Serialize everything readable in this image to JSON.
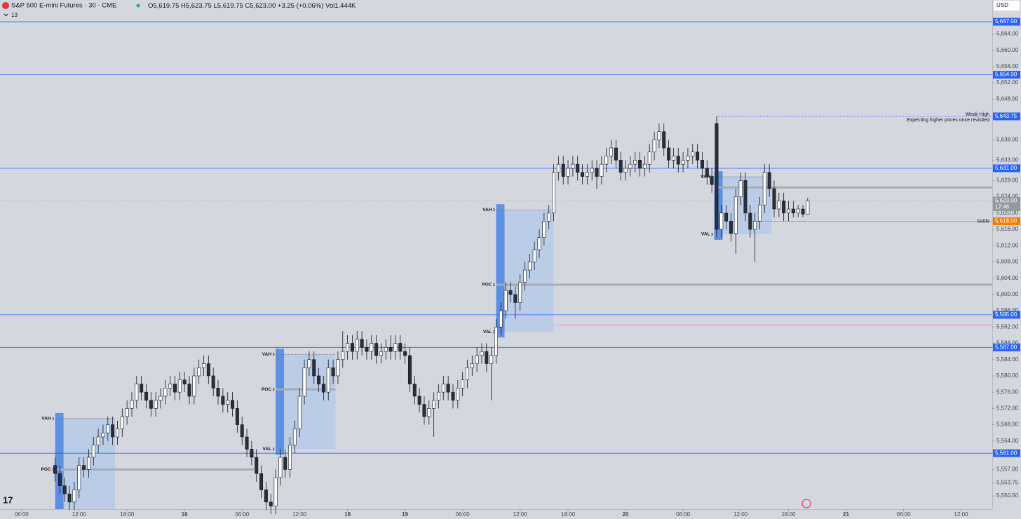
{
  "chart_data": {
    "type": "candlestick",
    "title": "S&P 500 E-mini Futures · 30 · CME",
    "legend_values": [
      "O5,619.75",
      "H5,623.75",
      "L5,619.75",
      "C5,623.00",
      "+3.25 (+0.06%)",
      "Vol",
      "1.444K"
    ],
    "indicator_label": "13",
    "currency": "USD",
    "up_color": "#ffffff",
    "down_color": "#2a2e39",
    "ylim": [
      5547.25,
      5672.35
    ],
    "xlim": [
      -4.5,
      202.5
    ],
    "yticks": [
      {
        "value": 5664,
        "label": "5,664.00"
      },
      {
        "value": 5660,
        "label": "5,660.00"
      },
      {
        "value": 5656,
        "label": "5,656.00"
      },
      {
        "value": 5652,
        "label": "5,652.00"
      },
      {
        "value": 5648,
        "label": "5,648.00"
      },
      {
        "value": 5638,
        "label": "5,638.00"
      },
      {
        "value": 5633,
        "label": "5,633.00"
      },
      {
        "value": 5628,
        "label": "5,628.00"
      },
      {
        "value": 5624,
        "label": "5,624.00"
      },
      {
        "value": 5620,
        "label": "5,620.00"
      },
      {
        "value": 5616,
        "label": "5,616.00"
      },
      {
        "value": 5612,
        "label": "5,612.00"
      },
      {
        "value": 5608,
        "label": "5,608.00"
      },
      {
        "value": 5604,
        "label": "5,604.00"
      },
      {
        "value": 5600,
        "label": "5,600.00"
      },
      {
        "value": 5596,
        "label": "5,596.00"
      },
      {
        "value": 5592,
        "label": "5,592.00"
      },
      {
        "value": 5588,
        "label": "5,588.00"
      },
      {
        "value": 5584,
        "label": "5,584.00"
      },
      {
        "value": 5580,
        "label": "5,580.00"
      },
      {
        "value": 5576,
        "label": "5,576.00"
      },
      {
        "value": 5572,
        "label": "5,572.00"
      },
      {
        "value": 5568,
        "label": "5,568.00"
      },
      {
        "value": 5564,
        "label": "5,564.00"
      },
      {
        "value": 5557,
        "label": "5,557.00"
      },
      {
        "value": 5553.75,
        "label": "5,553.75"
      },
      {
        "value": 5550.5,
        "label": "5,550.50"
      }
    ],
    "xticks": [
      {
        "value": 0,
        "label": "06:00"
      },
      {
        "value": 12,
        "label": "12:00"
      },
      {
        "value": 22,
        "label": "18:00"
      },
      {
        "value": 34,
        "label": "16"
      },
      {
        "value": 46,
        "label": "06:00"
      },
      {
        "value": 58,
        "label": "12:00"
      },
      {
        "value": 68,
        "label": "18"
      },
      {
        "value": 80,
        "label": "19"
      },
      {
        "value": 92,
        "label": "06:00"
      },
      {
        "value": 104,
        "label": "12:00"
      },
      {
        "value": 114,
        "label": "18:00"
      },
      {
        "value": 126,
        "label": "20"
      },
      {
        "value": 138,
        "label": "06:00"
      },
      {
        "value": 150,
        "label": "12:00"
      },
      {
        "value": 160,
        "label": "18:00"
      },
      {
        "value": 172,
        "label": "21"
      },
      {
        "value": 184,
        "label": "06:00"
      },
      {
        "value": 196,
        "label": "12:00"
      }
    ],
    "levels": [
      {
        "value": 5667,
        "label": "5,667.00",
        "color": "#2962ff"
      },
      {
        "value": 5654,
        "label": "5,654.00",
        "color": "#2962ff"
      },
      {
        "value": 5631,
        "label": "5,631.00",
        "color": "#2962ff"
      },
      {
        "value": 5595,
        "label": "5,595.00",
        "color": "#2962ff"
      },
      {
        "value": 5587,
        "label": "5,587.00",
        "color": "#2962ff"
      },
      {
        "value": 5561,
        "label": "5,561.00",
        "color": "#2962ff"
      }
    ],
    "weak_high": {
      "value": 5643.75,
      "label": "5,643.75",
      "from": 145,
      "title": "Weak High",
      "note": "Expecting higher prices once revisited",
      "color": "#2962ff"
    },
    "settle": {
      "value": 5618,
      "label": "5,618.00",
      "from": 152,
      "text": "Settle",
      "color": "#f57c00"
    },
    "last_price": {
      "value": 5623,
      "label": "5,623.00",
      "countdown": "17:46",
      "color": "#9598a1"
    },
    "zones": [
      {
        "value": 5592.5,
        "from": 111,
        "color": "#e1bee7"
      }
    ],
    "profiles": [
      {
        "start": 7,
        "end": 19.5,
        "vah": 5569.5,
        "poc": 5557,
        "poc_to": 48.5,
        "labels": [
          "VAH",
          "POC"
        ]
      },
      {
        "start": 53,
        "end": 65.5,
        "vah": 5585.3,
        "poc": 5576.7,
        "val": 5562,
        "poc_to": 65.5,
        "labels": [
          "VAH",
          "POC",
          "VAL"
        ]
      },
      {
        "start": 99,
        "end": 111,
        "vah": 5620.8,
        "poc": 5602.4,
        "val": 5590.8,
        "poc_to": 202.5,
        "labels": [
          "VAH",
          "POC",
          "VAL"
        ]
      },
      {
        "start": 144.5,
        "end": 156.5,
        "vah": 5628.9,
        "poc": 5626.3,
        "val": 5614.8,
        "poc_to": 202.5,
        "labels": [
          "VAH",
          "VAL"
        ]
      }
    ],
    "x": [
      7,
      8,
      9,
      10,
      11,
      12,
      13,
      14,
      15,
      16,
      17,
      18,
      19,
      20,
      21,
      22,
      23,
      24,
      25,
      26,
      27,
      28,
      29,
      30,
      31,
      32,
      33,
      34,
      35,
      36,
      37,
      38,
      39,
      40,
      41,
      42,
      43,
      44,
      45,
      46,
      47,
      48,
      49,
      50,
      51,
      52,
      53,
      54,
      55,
      56,
      57,
      58,
      59,
      60,
      61,
      62,
      63,
      64,
      65,
      66,
      67,
      68,
      69,
      70,
      71,
      72,
      73,
      74,
      75,
      76,
      77,
      78,
      79,
      80,
      81,
      82,
      83,
      84,
      85,
      86,
      87,
      88,
      89,
      90,
      91,
      92,
      93,
      94,
      95,
      96,
      97,
      98,
      99,
      100,
      101,
      102,
      103,
      104,
      105,
      106,
      107,
      108,
      109,
      110,
      111,
      112,
      113,
      114,
      115,
      116,
      117,
      118,
      119,
      120,
      121,
      122,
      123,
      124,
      125,
      126,
      127,
      128,
      129,
      130,
      131,
      132,
      133,
      134,
      135,
      136,
      137,
      138,
      139,
      140,
      141,
      142,
      143,
      144,
      145,
      146,
      147,
      148,
      149,
      150,
      151,
      152,
      153,
      154,
      155,
      156,
      157,
      158,
      159,
      160,
      161,
      162,
      163,
      164
    ],
    "open": [
      5558,
      5556,
      5553,
      5551,
      5549,
      5552,
      5558,
      5557,
      5560,
      5563,
      5565,
      5566,
      5568,
      5565,
      5567,
      5570,
      5572,
      5574,
      5578,
      5576,
      5574,
      5572,
      5574,
      5575,
      5577,
      5578,
      5576,
      5579,
      5578,
      5575,
      5580,
      5582,
      5583,
      5580,
      5577,
      5575,
      5573,
      5574,
      5572,
      5568,
      5565,
      5562,
      5560,
      5556,
      5552,
      5549,
      5548,
      5555,
      5560,
      5557,
      5563,
      5567,
      5575,
      5582,
      5584,
      5580,
      5578,
      5576,
      5582,
      5580,
      5584,
      5586,
      5588,
      5586,
      5589,
      5587,
      5586,
      5588,
      5585,
      5586,
      5587,
      5586,
      5588,
      5586,
      5585,
      5578,
      5575,
      5573,
      5570,
      5572,
      5574,
      5576,
      5578,
      5576,
      5574,
      5577,
      5579,
      5582,
      5583,
      5585,
      5586,
      5583,
      5585,
      5592,
      5596,
      5601,
      5600,
      5598,
      5603,
      5606,
      5608,
      5611,
      5614,
      5618,
      5620,
      5630,
      5632,
      5629,
      5631,
      5632,
      5630,
      5629,
      5630,
      5631,
      5629,
      5632,
      5634,
      5636,
      5633,
      5630,
      5631,
      5632,
      5633,
      5631,
      5632,
      5635,
      5638,
      5640,
      5636,
      5633,
      5634,
      5632,
      5633,
      5634,
      5635,
      5633,
      5631,
      5629,
      5642,
      5616,
      5620,
      5618,
      5615,
      5624,
      5628,
      5620,
      5616,
      5618,
      5622,
      5630,
      5626,
      5621,
      5623,
      5620,
      5621,
      5620,
      5621,
      5619.75
    ],
    "high": [
      5560,
      5558,
      5555,
      5553,
      5554,
      5560,
      5560,
      5562,
      5565,
      5567,
      5568,
      5570,
      5570,
      5569,
      5572,
      5574,
      5576,
      5580,
      5580,
      5578,
      5576,
      5576,
      5577,
      5579,
      5580,
      5580,
      5581,
      5581,
      5580,
      5582,
      5584,
      5585,
      5585,
      5582,
      5579,
      5577,
      5576,
      5576,
      5574,
      5570,
      5567,
      5564,
      5562,
      5558,
      5554,
      5551,
      5557,
      5562,
      5562,
      5565,
      5569,
      5577,
      5584,
      5586,
      5586,
      5582,
      5580,
      5584,
      5584,
      5586,
      5591,
      5590,
      5590,
      5591,
      5591,
      5589,
      5590,
      5590,
      5588,
      5589,
      5590,
      5590,
      5590,
      5588,
      5587,
      5580,
      5577,
      5575,
      5574,
      5576,
      5578,
      5580,
      5580,
      5578,
      5579,
      5581,
      5584,
      5585,
      5587,
      5588,
      5588,
      5587,
      5594,
      5598,
      5603,
      5603,
      5602,
      5605,
      5608,
      5610,
      5613,
      5616,
      5620,
      5622,
      5632,
      5634,
      5634,
      5633,
      5634,
      5634,
      5632,
      5632,
      5633,
      5633,
      5634,
      5636,
      5638,
      5638,
      5635,
      5633,
      5634,
      5635,
      5635,
      5634,
      5637,
      5640,
      5642,
      5642,
      5638,
      5636,
      5636,
      5635,
      5636,
      5637,
      5637,
      5635,
      5633,
      5631,
      5643.75,
      5622,
      5622,
      5620,
      5626,
      5630,
      5630,
      5622,
      5620,
      5624,
      5632,
      5632,
      5628,
      5625,
      5625,
      5623,
      5623,
      5622,
      5622,
      5623.75
    ],
    "low": [
      5554,
      5551,
      5549,
      5547,
      5547,
      5550,
      5555,
      5555,
      5558,
      5561,
      5563,
      5564,
      5563,
      5563,
      5565,
      5568,
      5570,
      5572,
      5574,
      5572,
      5570,
      5570,
      5572,
      5573,
      5575,
      5574,
      5574,
      5576,
      5573,
      5573,
      5578,
      5580,
      5578,
      5575,
      5573,
      5571,
      5571,
      5570,
      5566,
      5563,
      5560,
      5558,
      5554,
      5550,
      5547,
      5546,
      5546,
      5553,
      5555,
      5555,
      5561,
      5565,
      5573,
      5580,
      5578,
      5576,
      5574,
      5574,
      5578,
      5578,
      5582,
      5584,
      5584,
      5584,
      5585,
      5584,
      5584,
      5583,
      5583,
      5584,
      5584,
      5584,
      5584,
      5583,
      5576,
      5573,
      5571,
      5568,
      5568,
      5565,
      5572,
      5574,
      5574,
      5572,
      5572,
      5575,
      5577,
      5580,
      5581,
      5583,
      5581,
      5574,
      5583,
      5590,
      5594,
      5598,
      5594,
      5596,
      5601,
      5604,
      5606,
      5609,
      5612,
      5616,
      5618,
      5628,
      5627,
      5627,
      5629,
      5628,
      5627,
      5627,
      5628,
      5626,
      5627,
      5630,
      5632,
      5631,
      5628,
      5628,
      5629,
      5630,
      5629,
      5629,
      5630,
      5633,
      5636,
      5634,
      5631,
      5631,
      5630,
      5630,
      5631,
      5632,
      5631,
      5629,
      5627,
      5625,
      5614,
      5614,
      5616,
      5613,
      5610,
      5622,
      5618,
      5614,
      5608,
      5616,
      5620,
      5624,
      5619,
      5619,
      5618,
      5618,
      5619,
      5619,
      5619,
      5619.75
    ],
    "close": [
      5556,
      5553,
      5551,
      5549,
      5552,
      5558,
      5557,
      5560,
      5563,
      5565,
      5566,
      5568,
      5565,
      5567,
      5570,
      5572,
      5574,
      5578,
      5576,
      5574,
      5572,
      5574,
      5575,
      5577,
      5578,
      5576,
      5579,
      5578,
      5575,
      5580,
      5582,
      5583,
      5580,
      5577,
      5575,
      5573,
      5574,
      5572,
      5568,
      5565,
      5562,
      5560,
      5556,
      5552,
      5549,
      5548,
      5555,
      5560,
      5557,
      5563,
      5567,
      5575,
      5582,
      5584,
      5580,
      5578,
      5576,
      5582,
      5580,
      5584,
      5586,
      5588,
      5586,
      5589,
      5587,
      5586,
      5588,
      5585,
      5586,
      5587,
      5586,
      5588,
      5586,
      5585,
      5578,
      5575,
      5573,
      5570,
      5572,
      5574,
      5576,
      5578,
      5576,
      5574,
      5577,
      5579,
      5582,
      5583,
      5585,
      5586,
      5583,
      5585,
      5592,
      5596,
      5601,
      5600,
      5598,
      5603,
      5606,
      5608,
      5611,
      5614,
      5618,
      5620,
      5630,
      5632,
      5629,
      5631,
      5632,
      5630,
      5629,
      5630,
      5631,
      5629,
      5632,
      5634,
      5636,
      5633,
      5630,
      5631,
      5632,
      5633,
      5631,
      5632,
      5635,
      5638,
      5640,
      5636,
      5633,
      5634,
      5632,
      5633,
      5634,
      5635,
      5633,
      5631,
      5629,
      5627,
      5616,
      5620,
      5618,
      5615,
      5624,
      5628,
      5620,
      5616,
      5618,
      5622,
      5630,
      5626,
      5621,
      5623,
      5620,
      5621,
      5620,
      5621,
      5619.75,
      5623
    ]
  }
}
